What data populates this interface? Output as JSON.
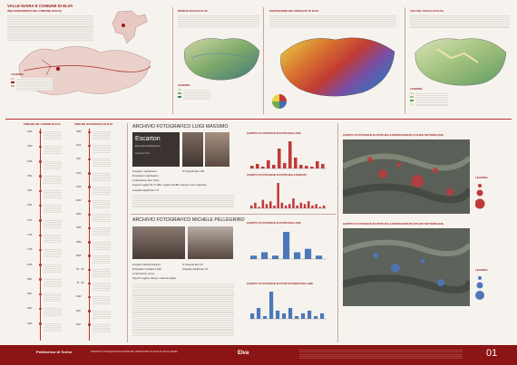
{
  "top": {
    "main_title": "VALLE MAIRA E COMUNE DI ELVA",
    "inquadramento": "INQUADRAMENTO DEL COMUNE DI ELVA",
    "morfologia": "MORFOLOGIA DI ELVA",
    "esposizione": "ESPOSIZIONE DEI VERSANTI DI ELVA",
    "uso_suolo": "USO DEL SUOLO DI ELVA",
    "legenda": "LEGENDA"
  },
  "timeline": {
    "col1_title": "TIMELINE DEL COMUNE DI ELVA",
    "col2_title": "TIMELINE FOTOGRAFICA DI ELVA",
    "years_left": [
      "1264",
      "1300",
      "1326",
      "1451",
      "1497",
      "1511",
      "1700",
      "1734",
      "1796",
      "1815",
      "1861",
      "1907",
      "1927",
      "1933"
    ],
    "years_right": [
      "1890",
      "1914",
      "1937",
      "1943",
      "1945",
      "1950",
      "1960",
      "1966",
      "1980",
      "2006",
      "'50 - '60",
      "'70 - '80",
      "1990",
      "2007",
      "2011"
    ]
  },
  "massimo": {
    "title": "ARCHIVIO FOTOGRAFICO LUIGI MASSIMO",
    "book_title": "Escarton",
    "book_subtitle": "Elementi Architettonici",
    "book_author": "Sebastian Pino",
    "fields": [
      "Fotografo: Luigi Massimo",
      "Proprietario: Luigi Massimo",
      "Localizzazione: Elva, Torino",
      "Supporti: negativi 35 mm (BN), negativi 120 (BN), stampe a colori, diapositive",
      "Fotografie digitalizzate: 177",
      "Nº fotografie Elva: 189"
    ],
    "chart1_title": "QUANTITA' DI FOTOGRAFIE SCATTATE NEGLI ANNI",
    "chart2_title": "QUANTITA' DI FOTOGRAFIE SCATTATE NELLE BORGATE"
  },
  "pellegrino": {
    "title": "ARCHIVIO FOTOGRAFICO MICHELE PELLEGRINO",
    "fields": [
      "Fotografo: Michele Pellegrino",
      "Proprietario: Fondazione CRC",
      "Localizzazione: Cuneo",
      "Supporti: negativi, stampe e materiale digitale",
      "Fotografie digitalizzate: 32",
      "Nº fotografie Elva: 32"
    ],
    "chart1_title": "QUANTITA' DI FOTOGRAFIE SCATTATE NEGLI ANNI",
    "chart2_title": "QUANTITA' DI FOTOGRAFIE SCATTATE IN PERIODI DEGLI ANNI",
    "map_title": "QUANTITA' DI FOTOGRAFIE SCATTATE NELLE DIVERSE BORGATE (UTILIZZO SOFTWARE QGIS)"
  },
  "map_right": {
    "title": "QUANTITA' DI FOTOGRAFIE SCATTATE NELLE DIVERSE BORGATE (UTILIZZO SOFTWARE QGIS)",
    "legenda": "LEGENDA"
  },
  "chart_data": [
    {
      "type": "bar",
      "title": "QUANTITA' DI FOTOGRAFIE SCATTATE NEGLI ANNI",
      "values": [
        3,
        5,
        2,
        9,
        4,
        22,
        6,
        30,
        12,
        4,
        3,
        2,
        8,
        5
      ]
    },
    {
      "type": "bar",
      "title": "QUANTITA' DI FOTOGRAFIE SCATTATE NELLE BORGATE",
      "values": [
        2,
        4,
        1,
        6,
        3,
        5,
        2,
        18,
        4,
        2,
        3,
        7,
        2,
        4,
        3,
        5,
        2,
        3,
        1,
        2
      ]
    },
    {
      "type": "bar",
      "title": "QUANTITA' DI FOTOGRAFIE SCATTATE NEGLI ANNI",
      "values": [
        1,
        2,
        1,
        8,
        2,
        3,
        1
      ]
    },
    {
      "type": "bar",
      "title": "QUANTITA' DI FOTOGRAFIE SCATTATE IN PERIODI DEGLI ANNI",
      "values": [
        2,
        4,
        1,
        10,
        3,
        2,
        4,
        1,
        2,
        3,
        1,
        2
      ]
    }
  ],
  "footer": {
    "institution": "Politecnico di Torino",
    "project": "PROGETTO DI RIQUALIFICAZIONE DEL TERRITORIO DI ELVA IN VALLE MAIRA",
    "brand": "Elva",
    "page_number": "01"
  },
  "colors": {
    "accent": "#9b1b1b",
    "footer": "#8b1414"
  }
}
